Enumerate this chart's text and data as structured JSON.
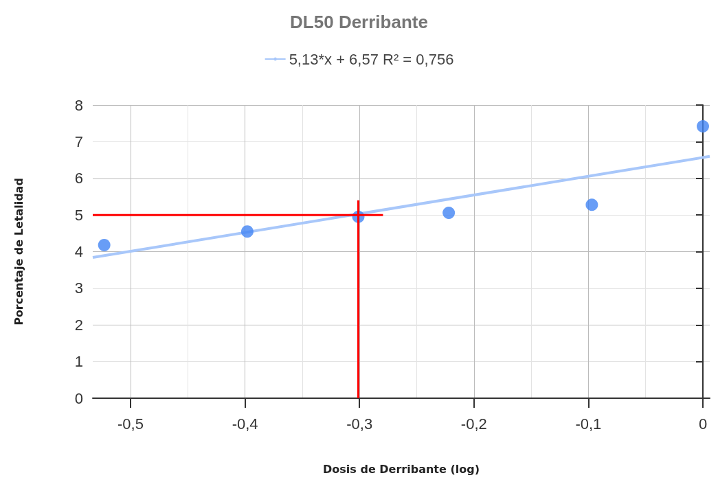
{
  "chart_data": {
    "type": "scatter",
    "title": "DL50 Derribante",
    "xlabel": "Dosis de Derribante (log)",
    "ylabel": "Porcentaje de Letalidad",
    "xlim": [
      -0.533,
      0.006
    ],
    "xticks": [
      {
        "value": -0.5,
        "label": "-0,5"
      },
      {
        "value": -0.4,
        "label": "-0,4"
      },
      {
        "value": -0.3,
        "label": "-0,3"
      },
      {
        "value": -0.2,
        "label": "-0,2"
      },
      {
        "value": -0.1,
        "label": "-0,1"
      },
      0
    ],
    "ylim": [
      0,
      8
    ],
    "yticks": [
      0,
      1,
      2,
      3,
      4,
      5,
      6,
      7,
      8
    ],
    "grid": true,
    "legend": "top",
    "series": [
      {
        "marker": "circle",
        "color": "#4285f4",
        "x": [
          -0.523,
          -0.398,
          -0.301,
          -0.222,
          -0.097,
          0
        ],
        "values": [
          4.18,
          4.55,
          4.95,
          5.06,
          5.28,
          7.42
        ]
      },
      {
        "type": "line",
        "marker": "none",
        "name": "5,13*x + 6,57 R² = 0,756",
        "color": "#a8c7fa",
        "x": [
          -0.533,
          0.006
        ],
        "values": [
          3.84,
          6.6
        ]
      }
    ],
    "ref_lines": [
      {
        "axis": "x",
        "value": -0.301,
        "color": "#ff0000"
      },
      {
        "axis": "y",
        "value": 5,
        "color": "#ff0000"
      }
    ]
  }
}
